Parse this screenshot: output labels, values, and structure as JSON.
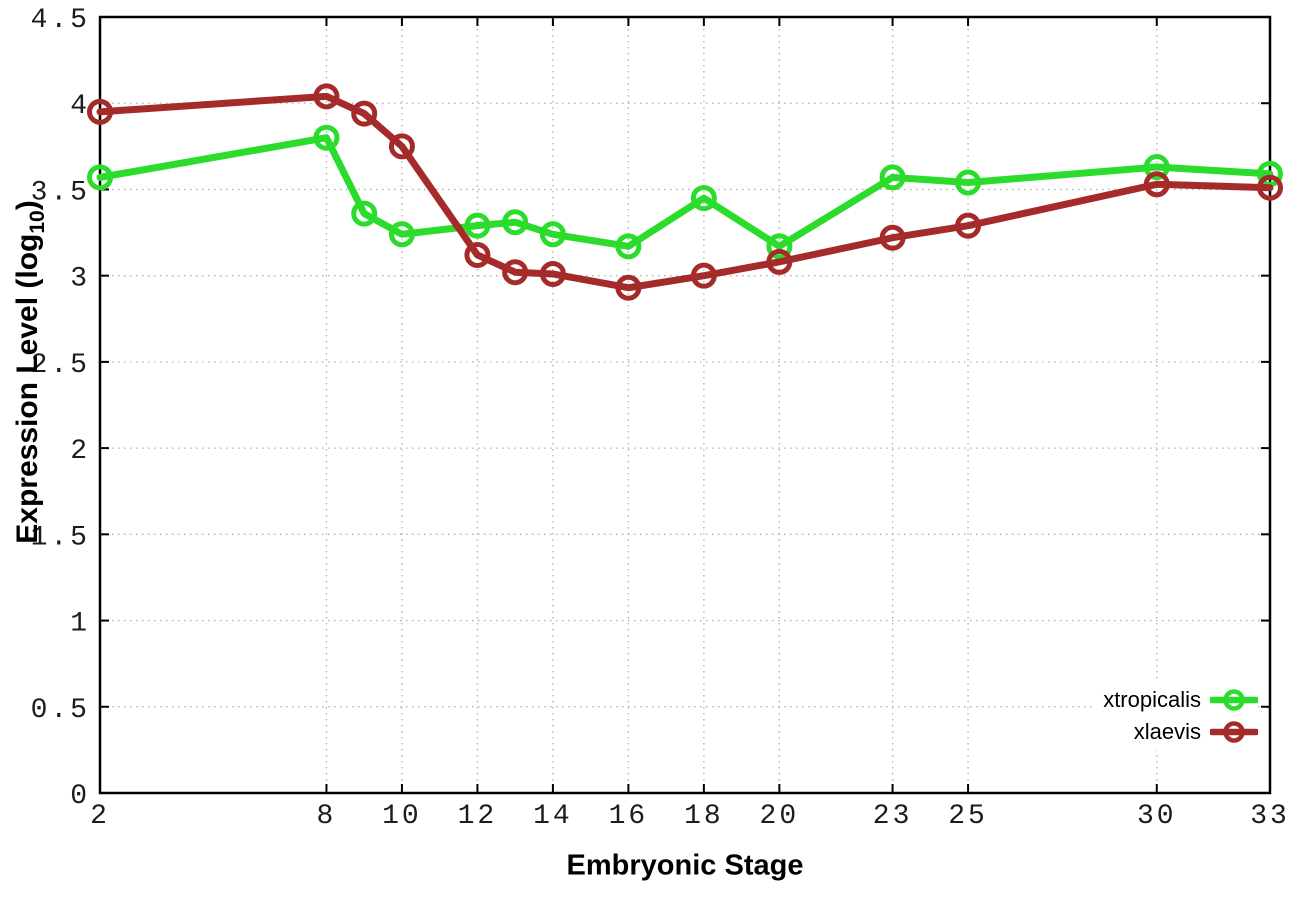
{
  "chart_data": {
    "type": "line",
    "title": "",
    "xlabel": "Embryonic Stage",
    "ylabel": "Expression Level (log10)",
    "ylabel_parts": {
      "pre": "Expression Level (log",
      "sub": "10",
      "post": ")"
    },
    "xlim": [
      2,
      33
    ],
    "ylim": [
      0,
      4.5
    ],
    "xticks": [
      2,
      8,
      10,
      12,
      14,
      16,
      18,
      20,
      23,
      25,
      30,
      33
    ],
    "yticks": [
      0,
      0.5,
      1,
      1.5,
      2,
      2.5,
      3,
      3.5,
      4,
      4.5
    ],
    "grid": true,
    "legend_position": "bottom-right",
    "x": [
      2,
      8,
      9,
      10,
      12,
      13,
      14,
      16,
      18,
      20,
      23,
      25,
      30,
      33
    ],
    "series": [
      {
        "name": "xtropicalis",
        "color": "#2cdc2c",
        "values": [
          3.57,
          3.8,
          3.36,
          3.24,
          3.29,
          3.31,
          3.24,
          3.17,
          3.45,
          3.17,
          3.57,
          3.54,
          3.63,
          3.59
        ]
      },
      {
        "name": "xlaevis",
        "color": "#a52a2a",
        "values": [
          3.95,
          4.04,
          3.94,
          3.75,
          3.12,
          3.02,
          3.01,
          2.93,
          3.0,
          3.08,
          3.22,
          3.29,
          3.53,
          3.51
        ]
      }
    ],
    "colors": {
      "grid": "#b0b0b0",
      "axis": "#000000",
      "background": "#ffffff"
    }
  }
}
